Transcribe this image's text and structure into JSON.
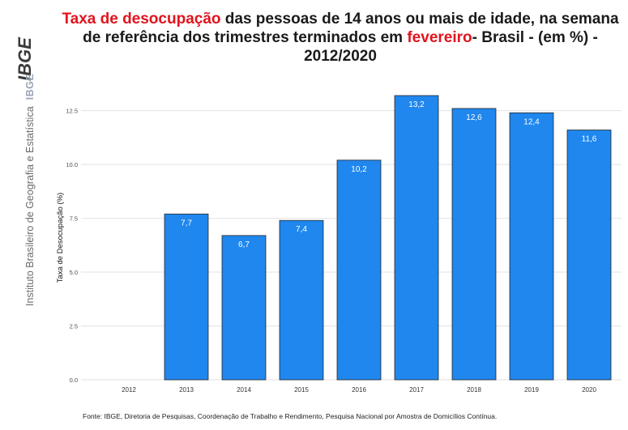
{
  "title": {
    "highlight_1": "Taxa de desocupação",
    "text_1": " das pessoas de 14 anos ou mais de idade, na semana de referência dos trimestres terminados em ",
    "highlight_2": "fevereiro",
    "text_2": "- Brasil - (em %) - 2012/2020"
  },
  "brand": {
    "logo_text": "IBGE",
    "vertical_text": "Instituto Brasileiro de Geografia e Estatística",
    "vertical_short": "IBGE"
  },
  "source": "Fonte: IBGE, Diretoria de Pesquisas, Coordenação de Trabalho e Rendimento, Pesquisa Nacional por Amostra de Domicílios Contínua.",
  "colors": {
    "bar": "#1f87ee",
    "bar_stroke": "#262626",
    "accent": "#e0141e",
    "grid": "#e2e2e2"
  },
  "chart_data": {
    "type": "bar",
    "categories": [
      "2012",
      "2013",
      "2014",
      "2015",
      "2016",
      "2017",
      "2018",
      "2019",
      "2020"
    ],
    "values": [
      null,
      7.7,
      6.7,
      7.4,
      10.2,
      13.2,
      12.6,
      12.4,
      11.6
    ],
    "labels": [
      "",
      "7,7",
      "6,7",
      "7,4",
      "10,2",
      "13,2",
      "12,6",
      "12,4",
      "11,6"
    ],
    "ylabel": "Taxa de Desocupação (%)",
    "xlabel": "",
    "ylim": [
      0,
      13.2
    ],
    "yticks": [
      0,
      2.5,
      5,
      7.5,
      10,
      12.5
    ],
    "ytick_labels": [
      "0.0",
      "2.5",
      "5.0",
      "7.5",
      "10.0",
      "12.5"
    ],
    "grid": true,
    "legend": "none"
  }
}
